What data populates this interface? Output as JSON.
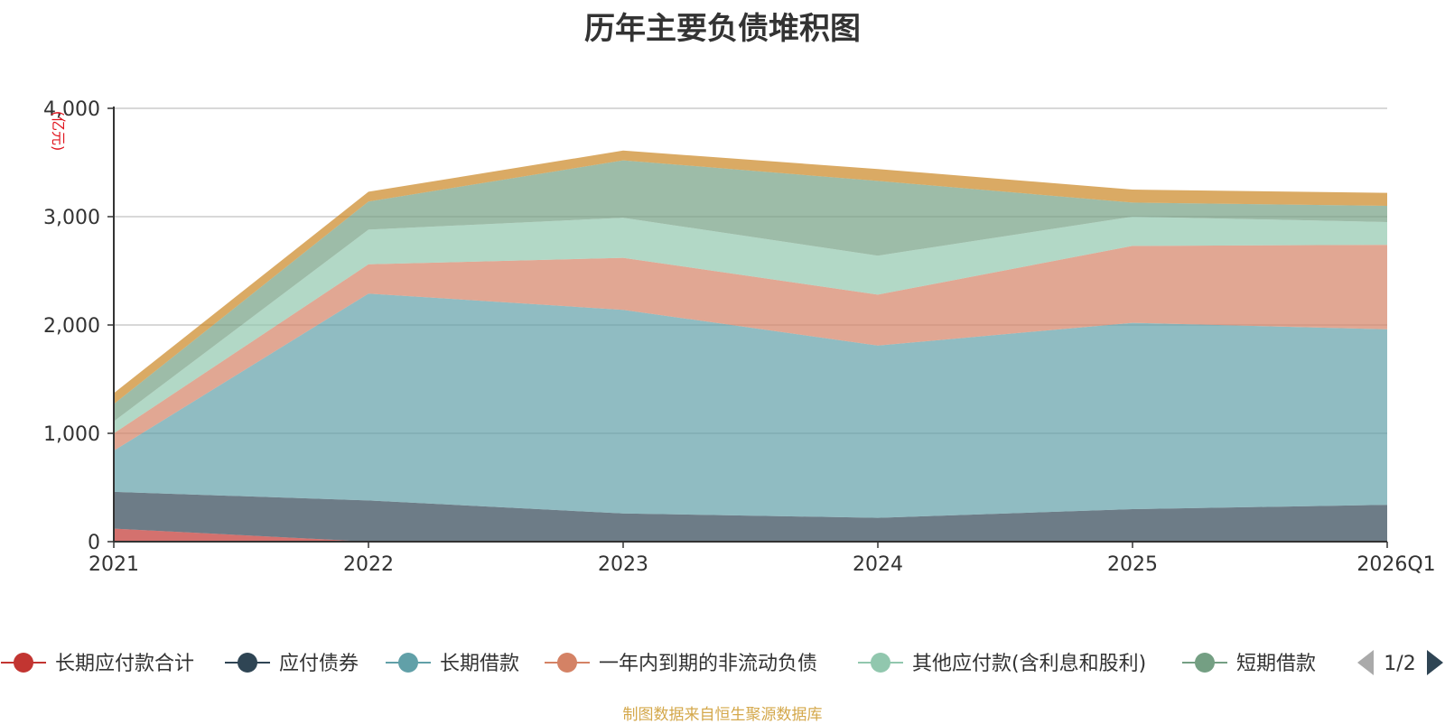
{
  "chart_data": {
    "type": "area",
    "stacked": true,
    "title": "历年主要负债堆积图",
    "unit_label": "(亿元)",
    "categories": [
      "2021",
      "2022",
      "2023",
      "2024",
      "2025",
      "2026Q1"
    ],
    "ylim": [
      0,
      4000
    ],
    "yticks": [
      0,
      1000,
      2000,
      3000,
      4000
    ],
    "ytick_labels": [
      "0",
      "1,000",
      "2,000",
      "3,000",
      "4,000"
    ],
    "grid": true,
    "legend_position": "bottom",
    "series": [
      {
        "name": "长期应付款合计",
        "color": "#c23531",
        "values": [
          120,
          0,
          0,
          0,
          0,
          0
        ]
      },
      {
        "name": "应付债券",
        "color": "#2f4554",
        "values": [
          340,
          380,
          260,
          220,
          300,
          340
        ]
      },
      {
        "name": "长期借款",
        "color": "#61a0a8",
        "values": [
          380,
          1910,
          1880,
          1590,
          1720,
          1620
        ]
      },
      {
        "name": "一年内到期的非流动负债",
        "color": "#d48265",
        "values": [
          160,
          270,
          480,
          470,
          710,
          780
        ]
      },
      {
        "name": "其他应付款(含利息和股利)",
        "color": "#91c7ae",
        "values": [
          110,
          320,
          370,
          360,
          270,
          210
        ]
      },
      {
        "name": "短期借款",
        "color": "#749f83",
        "values": [
          160,
          260,
          530,
          690,
          130,
          150
        ]
      },
      {
        "name": "",
        "color": "#ca8622",
        "values": [
          100,
          90,
          90,
          110,
          120,
          120
        ]
      }
    ],
    "legend_page": "1/2"
  },
  "source": "制图数据来自恒生聚源数据库"
}
